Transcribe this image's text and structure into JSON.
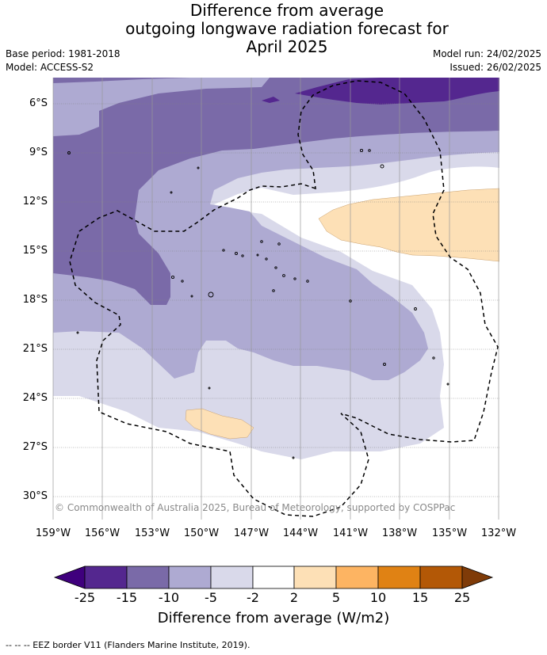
{
  "title": {
    "line1": "Difference from average",
    "line2": "outgoing longwave radiation forecast for",
    "line3": "April 2025"
  },
  "meta": {
    "base_period": "Base period: 1981-2018",
    "model": "Model: ACCESS-S2",
    "model_run": "Model run: 24/02/2025",
    "issued": "Issued: 26/02/2025"
  },
  "map": {
    "lat_labels": [
      "6°S",
      "9°S",
      "12°S",
      "15°S",
      "18°S",
      "21°S",
      "24°S",
      "27°S",
      "30°S"
    ],
    "lon_labels": [
      "159°W",
      "156°W",
      "153°W",
      "150°W",
      "147°W",
      "144°W",
      "141°W",
      "138°W",
      "135°W",
      "132°W"
    ],
    "credit": "© Commonwealth of Australia 2025, Bureau of Meteorology, supported by COSPPac",
    "anomaly_colors": {
      "lt_-25": "#3f007d",
      "-25_-15": "#54278f",
      "-15_-10": "#7a6aa8",
      "-10_-5": "#aeaad2",
      "-5_-2": "#d9d9ea",
      "-2_2": "#ffffff",
      "2_5": "#fde0b6",
      "5_10": "#fdb462",
      "10_15": "#e08214",
      "15_25": "#b35806",
      "gt_25": "#7f3b08"
    }
  },
  "colorbar": {
    "ticks": [
      "-25",
      "-15",
      "-10",
      "-5",
      "-2",
      "2",
      "5",
      "10",
      "15",
      "25"
    ],
    "title": "Difference from average (W/m2)"
  },
  "footnote": "--  --  -- EEZ border V11 (Flanders Marine Institute, 2019)."
}
